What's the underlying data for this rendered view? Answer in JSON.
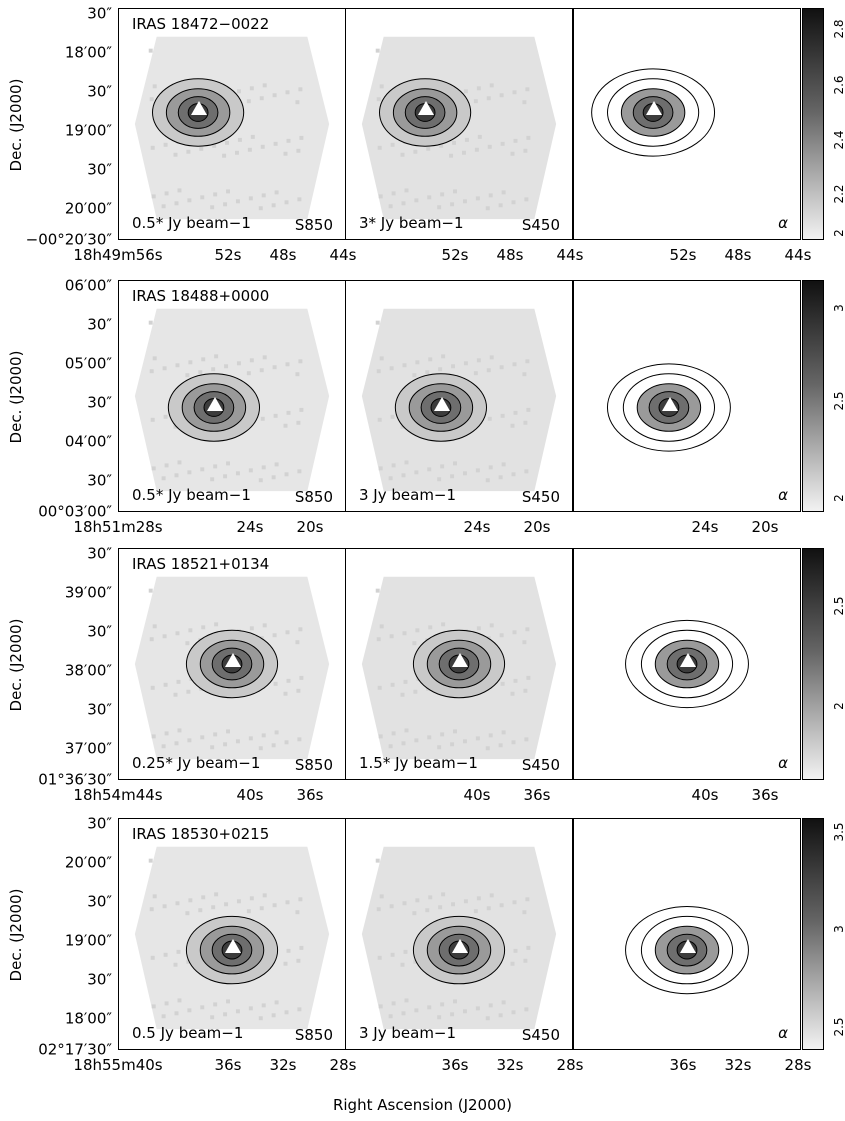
{
  "x_axis_label": "Right Ascension (J2000)",
  "y_axis_label": "Dec. (J2000)",
  "rows": [
    {
      "source": "IRAS 18472−0022",
      "scale_850": "0.5* Jy beam−1",
      "scale_450": "3* Jy beam−1",
      "band_850": "S850",
      "band_450": "S450",
      "alpha_label": "α",
      "dec_ticks": [
        "30″",
        "18′00″",
        "30″",
        "19′00″",
        "30″",
        "20′00″",
        "−00°20′30″"
      ],
      "ra_ticks_first": [
        "18h49m56s",
        "52s",
        "48s",
        "44s"
      ],
      "ra_ticks_other": [
        "52s",
        "48s",
        "44s"
      ],
      "colorbar_ticks": [
        "2.8",
        "2.6",
        "2.4",
        "2.2",
        "2"
      ]
    },
    {
      "source": "IRAS 18488+0000",
      "scale_850": "0.5* Jy beam−1",
      "scale_450": "3 Jy beam−1",
      "band_850": "S850",
      "band_450": "S450",
      "alpha_label": "α",
      "dec_ticks": [
        "06′00″",
        "30″",
        "05′00″",
        "30″",
        "04′00″",
        "30″",
        "00°03′00″"
      ],
      "ra_ticks_first": [
        "18h51m28s",
        "24s",
        "20s"
      ],
      "ra_ticks_other": [
        "24s",
        "20s"
      ],
      "colorbar_ticks": [
        "3",
        "2.5",
        "2"
      ]
    },
    {
      "source": "IRAS 18521+0134",
      "scale_850": "0.25* Jy beam−1",
      "scale_450": "1.5* Jy beam−1",
      "band_850": "S850",
      "band_450": "S450",
      "alpha_label": "α",
      "dec_ticks": [
        "30″",
        "39′00″",
        "30″",
        "38′00″",
        "30″",
        "37′00″",
        "01°36′30″"
      ],
      "ra_ticks_first": [
        "18h54m44s",
        "40s",
        "36s"
      ],
      "ra_ticks_other": [
        "40s",
        "36s"
      ],
      "colorbar_ticks": [
        "2.5",
        "2"
      ]
    },
    {
      "source": "IRAS 18530+0215",
      "scale_850": "0.5 Jy beam−1",
      "scale_450": "3 Jy beam−1",
      "band_850": "S850",
      "band_450": "S450",
      "alpha_label": "α",
      "dec_ticks": [
        "30″",
        "20′00″",
        "30″",
        "19′00″",
        "30″",
        "18′00″",
        "02°17′30″"
      ],
      "ra_ticks_first": [
        "18h55m40s",
        "36s",
        "32s",
        "28s"
      ],
      "ra_ticks_other": [
        "36s",
        "32s",
        "28s"
      ],
      "colorbar_ticks": [
        "3.5",
        "3",
        "2.5"
      ]
    }
  ]
}
